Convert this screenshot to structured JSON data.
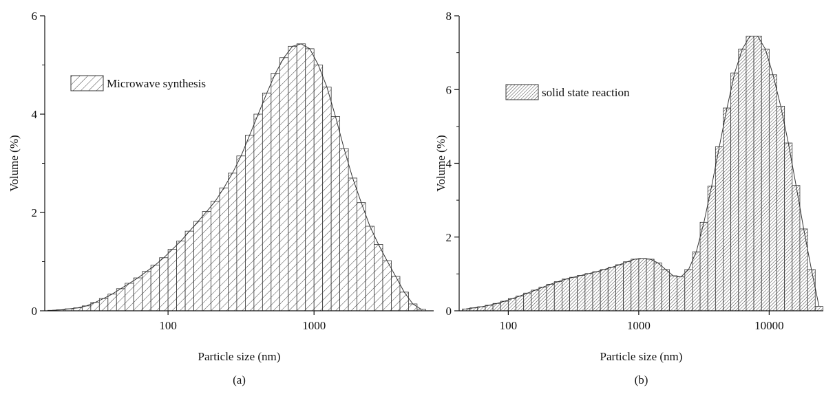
{
  "chart_data": [
    {
      "type": "histogram",
      "caption": "(a)",
      "x_label": "Particle size (nm)",
      "y_label": "Volume (%)",
      "log_x": true,
      "xlim": [
        14.3,
        6600
      ],
      "xticks": [
        100,
        1000
      ],
      "ylim": [
        0,
        6
      ],
      "yticks": [
        0,
        2,
        4,
        6
      ],
      "bins": [
        15.01,
        17.19,
        19.68,
        22.54,
        25.81,
        29.55,
        33.84,
        38.75,
        44.37,
        50.8,
        58.17,
        66.61,
        76.27,
        87.33,
        100,
        114.5,
        131.1,
        150.1,
        171.9,
        196.8,
        225.4,
        258.1,
        295.5,
        338.4,
        387.5,
        443.7,
        508,
        581.7,
        666.1,
        762.7,
        873.3,
        1000,
        1145,
        1311,
        1501,
        1719,
        1968,
        2254,
        2581,
        2955,
        3384,
        3875,
        4437,
        5080,
        5817
      ],
      "series": [
        {
          "name": "Microwave synthesis",
          "color": "#333333",
          "values": [
            0.01,
            0.02,
            0.04,
            0.06,
            0.1,
            0.17,
            0.25,
            0.34,
            0.45,
            0.56,
            0.67,
            0.8,
            0.93,
            1.08,
            1.25,
            1.42,
            1.62,
            1.82,
            2.02,
            2.23,
            2.5,
            2.8,
            3.15,
            3.57,
            4.0,
            4.43,
            4.83,
            5.15,
            5.38,
            5.43,
            5.33,
            5.0,
            4.55,
            3.95,
            3.3,
            2.7,
            2.2,
            1.72,
            1.35,
            1.02,
            0.7,
            0.38,
            0.14,
            0.03
          ]
        }
      ]
    },
    {
      "type": "histogram",
      "caption": "(b)",
      "x_label": "Particle size (nm)",
      "y_label": "Volume (%)",
      "log_x": true,
      "xlim": [
        42,
        26000
      ],
      "xticks": [
        100,
        1000,
        10000
      ],
      "ylim": [
        0,
        8
      ],
      "yticks": [
        0,
        2,
        4,
        6,
        8
      ],
      "bins": [
        44.37,
        50.8,
        58.17,
        66.61,
        76.27,
        87.33,
        100,
        114.5,
        131.1,
        150.1,
        171.9,
        196.8,
        225.4,
        258.1,
        295.5,
        338.4,
        387.5,
        443.7,
        508,
        581.7,
        666.1,
        762.7,
        873.3,
        1000,
        1145,
        1311,
        1501,
        1719,
        1968,
        2254,
        2581,
        2955,
        3384,
        3875,
        4437,
        5080,
        5817,
        6661,
        7627,
        8733,
        10000,
        11450,
        13110,
        15010,
        17190,
        19680,
        22540,
        25810
      ],
      "series": [
        {
          "name": "solid state reaction",
          "color": "#333333",
          "values": [
            0.05,
            0.08,
            0.11,
            0.15,
            0.2,
            0.26,
            0.33,
            0.4,
            0.48,
            0.56,
            0.64,
            0.72,
            0.79,
            0.86,
            0.91,
            0.96,
            1.01,
            1.06,
            1.12,
            1.18,
            1.25,
            1.33,
            1.4,
            1.42,
            1.4,
            1.3,
            1.12,
            0.95,
            0.92,
            1.12,
            1.6,
            2.4,
            3.38,
            4.45,
            5.5,
            6.45,
            7.1,
            7.45,
            7.45,
            7.1,
            6.4,
            5.55,
            4.55,
            3.4,
            2.22,
            1.12,
            0.12
          ]
        }
      ]
    }
  ]
}
